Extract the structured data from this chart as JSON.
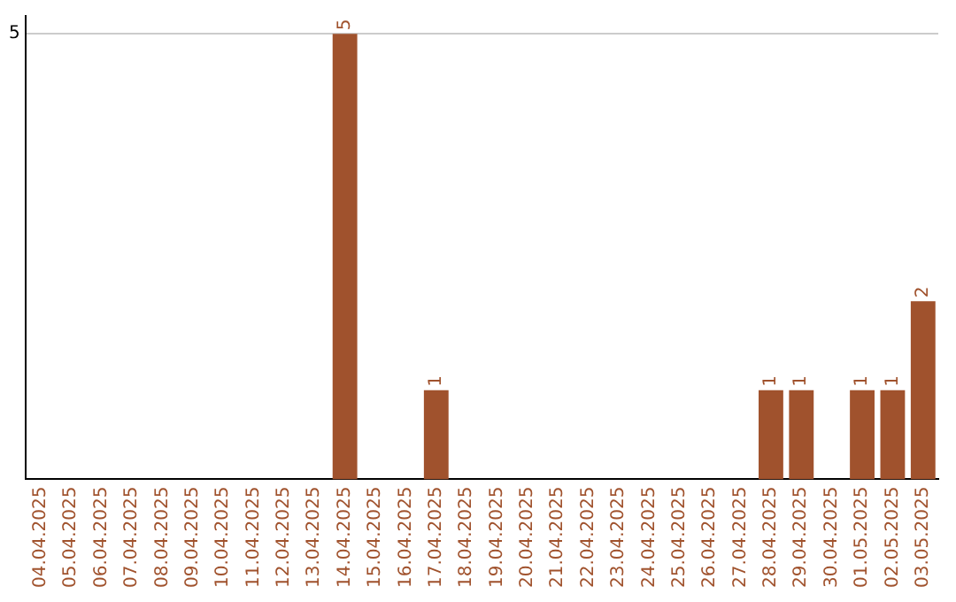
{
  "chart_data": {
    "type": "bar",
    "categories": [
      "04.04.2025",
      "05.04.2025",
      "06.04.2025",
      "07.04.2025",
      "08.04.2025",
      "09.04.2025",
      "10.04.2025",
      "11.04.2025",
      "12.04.2025",
      "13.04.2025",
      "14.04.2025",
      "15.04.2025",
      "16.04.2025",
      "17.04.2025",
      "18.04.2025",
      "19.04.2025",
      "20.04.2025",
      "21.04.2025",
      "22.04.2025",
      "23.04.2025",
      "24.04.2025",
      "25.04.2025",
      "26.04.2025",
      "27.04.2025",
      "28.04.2025",
      "29.04.2025",
      "30.04.2025",
      "01.05.2025",
      "02.05.2025",
      "03.05.2025"
    ],
    "values": [
      null,
      null,
      null,
      null,
      null,
      null,
      null,
      null,
      null,
      null,
      5,
      null,
      null,
      1,
      null,
      null,
      null,
      null,
      null,
      null,
      null,
      null,
      null,
      null,
      1,
      1,
      null,
      1,
      1,
      2
    ],
    "color": "#a0522d",
    "ylim": [
      0,
      5.2
    ],
    "yticks": [
      5
    ],
    "grid": "y",
    "legend": false,
    "data_labels": true
  }
}
